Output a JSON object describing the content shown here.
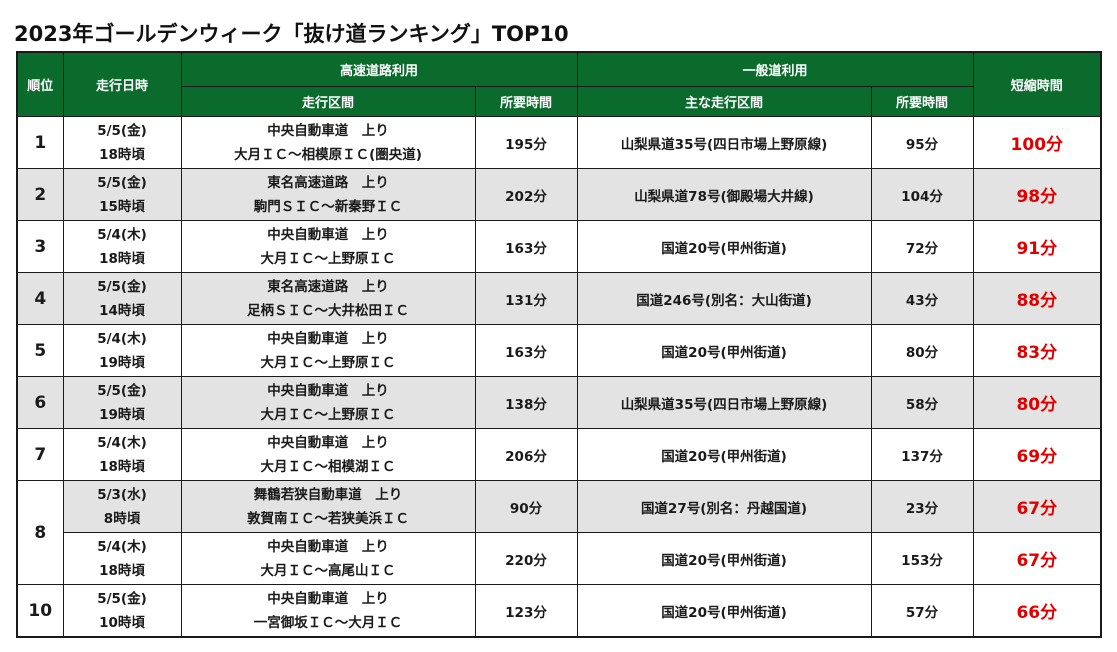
{
  "title": "2023年ゴールデンウィーク「抜け道ランキング」TOP10",
  "headers": {
    "rank": "順位",
    "datetime": "走行日時",
    "expressway": "高速道路利用",
    "general": "一般道利用",
    "saving": "短縮時間",
    "section": "走行区間",
    "exp_time": "所要時間",
    "main_section": "主な走行区間",
    "gen_time": "所要時間"
  },
  "rows": [
    {
      "rank": "1",
      "date": "5/5(金)",
      "time": "18時頃",
      "road": "中央自動車道　上り",
      "section": "大月ＩＣ～相模原ＩＣ(圏央道)",
      "exp_time": "195分",
      "general_route": "山梨県道35号(四日市場上野原線)",
      "gen_time": "95分",
      "saving": "100分"
    },
    {
      "rank": "2",
      "date": "5/5(金)",
      "time": "15時頃",
      "road": "東名高速道路　上り",
      "section": "駒門ＳＩＣ～新秦野ＩＣ",
      "exp_time": "202分",
      "general_route": "山梨県道78号(御殿場大井線)",
      "gen_time": "104分",
      "saving": "98分"
    },
    {
      "rank": "3",
      "date": "5/4(木)",
      "time": "18時頃",
      "road": "中央自動車道　上り",
      "section": "大月ＩＣ～上野原ＩＣ",
      "exp_time": "163分",
      "general_route": "国道20号(甲州街道)",
      "gen_time": "72分",
      "saving": "91分"
    },
    {
      "rank": "4",
      "date": "5/5(金)",
      "time": "14時頃",
      "road": "東名高速道路　上り",
      "section": "足柄ＳＩＣ～大井松田ＩＣ",
      "exp_time": "131分",
      "general_route": "国道246号(別名：大山街道)",
      "gen_time": "43分",
      "saving": "88分"
    },
    {
      "rank": "5",
      "date": "5/4(木)",
      "time": "19時頃",
      "road": "中央自動車道　上り",
      "section": "大月ＩＣ～上野原ＩＣ",
      "exp_time": "163分",
      "general_route": "国道20号(甲州街道)",
      "gen_time": "80分",
      "saving": "83分"
    },
    {
      "rank": "6",
      "date": "5/5(金)",
      "time": "19時頃",
      "road": "中央自動車道　上り",
      "section": "大月ＩＣ～上野原ＩＣ",
      "exp_time": "138分",
      "general_route": "山梨県道35号(四日市場上野原線)",
      "gen_time": "58分",
      "saving": "80分"
    },
    {
      "rank": "7",
      "date": "5/4(木)",
      "time": "18時頃",
      "road": "中央自動車道　上り",
      "section": "大月ＩＣ～相模湖ＩＣ",
      "exp_time": "206分",
      "general_route": "国道20号(甲州街道)",
      "gen_time": "137分",
      "saving": "69分"
    },
    {
      "rank": "8",
      "date": "5/3(水)",
      "time": "8時頃",
      "road": "舞鶴若狭自動車道　上り",
      "section": "敦賀南ＩＣ～若狭美浜ＩＣ",
      "exp_time": "90分",
      "general_route": "国道27号(別名：丹越国道)",
      "gen_time": "23分",
      "saving": "67分"
    },
    {
      "rank": "",
      "date": "5/4(木)",
      "time": "18時頃",
      "road": "中央自動車道　上り",
      "section": "大月ＩＣ～高尾山ＩＣ",
      "exp_time": "220分",
      "general_route": "国道20号(甲州街道)",
      "gen_time": "153分",
      "saving": "67分"
    },
    {
      "rank": "10",
      "date": "5/5(金)",
      "time": "10時頃",
      "road": "中央自動車道　上り",
      "section": "一宮御坂ＩＣ～大月ＩＣ",
      "exp_time": "123分",
      "general_route": "国道20号(甲州街道)",
      "gen_time": "57分",
      "saving": "66分"
    }
  ],
  "colors": {
    "header_bg": "#0b6b2c",
    "header_text": "#ffffff",
    "saving_text": "#e00000",
    "shaded_row": "#e3e3e3"
  }
}
